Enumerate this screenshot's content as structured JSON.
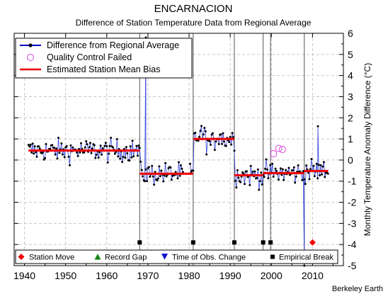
{
  "chart_data": {
    "type": "line",
    "title": "ENCARNACION",
    "subtitle": "Difference of Station Temperature Data from Regional Average",
    "ylabel": "Monthly Temperature Anomaly Difference (°C)",
    "xlabel": "",
    "credit": "Berkeley Earth",
    "xlim": [
      1937.5,
      2017.5
    ],
    "ylim": [
      -5,
      6
    ],
    "xticks": [
      1940,
      1950,
      1960,
      1970,
      1980,
      1990,
      2000,
      2010
    ],
    "yticks": [
      -5,
      -4,
      -3,
      -2,
      -1,
      0,
      1,
      2,
      3,
      4,
      5,
      6
    ],
    "grid": true,
    "legend_position": "top-left",
    "legend": [
      {
        "label": "Difference from Regional Average",
        "color": "#0000cc"
      },
      {
        "label": "Quality Control Failed",
        "color": "#dd44dd"
      },
      {
        "label": "Estimated Station Mean Bias",
        "color": "#ee0000"
      }
    ],
    "bottom_legend": [
      {
        "label": "Station Move",
        "symbol": "diamond",
        "color": "#ee0000"
      },
      {
        "label": "Record Gap",
        "symbol": "triangle-up",
        "color": "#118811"
      },
      {
        "label": "Time of Obs. Change",
        "symbol": "triangle-down",
        "color": "#1111cc"
      },
      {
        "label": "Empirical Break",
        "symbol": "square",
        "color": "#000000"
      }
    ],
    "breakpoint_lines": [
      1968.0,
      1981.0,
      1991.0,
      1998.0,
      1999.8,
      2008.0
    ],
    "empirical_breaks": [
      1968.0,
      1981.0,
      1991.0,
      1998.0,
      1999.8
    ],
    "station_moves": [
      2010.0
    ],
    "marker_y": -3.9,
    "bias_segments": [
      {
        "x0": 1941.0,
        "x1": 1968.0,
        "y": 0.45
      },
      {
        "x0": 1968.0,
        "x1": 1981.0,
        "y": -0.65
      },
      {
        "x0": 1981.0,
        "x1": 1991.0,
        "y": 1.0
      },
      {
        "x0": 1991.0,
        "x1": 1998.0,
        "y": -0.72
      },
      {
        "x0": 1998.0,
        "x1": 2008.0,
        "y": -0.62
      },
      {
        "x0": 2008.0,
        "x1": 2013.8,
        "y": -0.52
      }
    ],
    "series_sampling": {
      "x_start": 1941.0,
      "x_end": 2013.8,
      "step_years": 0.25
    },
    "outliers": [
      {
        "x": 1969.5,
        "y": 5.8
      },
      {
        "x": 2008.0,
        "y": -5.0
      },
      {
        "x": 2011.3,
        "y": 1.6
      }
    ],
    "qc_failed": [
      {
        "x": 2000.5,
        "y": 0.3
      },
      {
        "x": 2001.8,
        "y": 0.55
      },
      {
        "x": 2002.7,
        "y": 0.5
      }
    ]
  }
}
